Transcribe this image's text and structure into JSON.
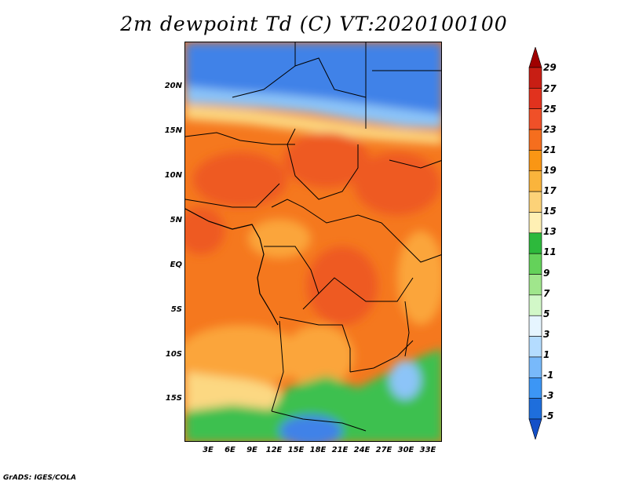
{
  "title": "2m dewpoint Td (C) VT:2020100100",
  "footer": "GrADS: IGES/COLA",
  "lat_labels": [
    "20N",
    "15N",
    "10N",
    "5N",
    "EQ",
    "5S",
    "10S",
    "15S"
  ],
  "lon_labels": [
    "3E",
    "6E",
    "9E",
    "12E",
    "15E",
    "18E",
    "21E",
    "24E",
    "27E",
    "30E",
    "33E"
  ],
  "colorbar": {
    "labels": [
      "29",
      "27",
      "25",
      "23",
      "21",
      "19",
      "17",
      "15",
      "13",
      "11",
      "9",
      "7",
      "5",
      "3",
      "1",
      "-1",
      "-3",
      "-5"
    ],
    "colors": [
      "#a00000",
      "#c81e14",
      "#e1321e",
      "#f05028",
      "#f56e1e",
      "#fa9614",
      "#fab43c",
      "#fcd278",
      "#fff0b4",
      "#2db93c",
      "#64d25a",
      "#a0e68c",
      "#d2f8c8",
      "#e6f5ff",
      "#b4dcff",
      "#78b9fa",
      "#3c96f5",
      "#1e6edc",
      "#1450c8"
    ]
  },
  "map_colors": {
    "dry_blue": "#3f82e8",
    "light_blue": "#8cc4f8",
    "orange": "#f5781e",
    "red_orange": "#ee5a22",
    "light_orange": "#fba53a",
    "pale": "#fcd882",
    "green": "#3cc050"
  }
}
